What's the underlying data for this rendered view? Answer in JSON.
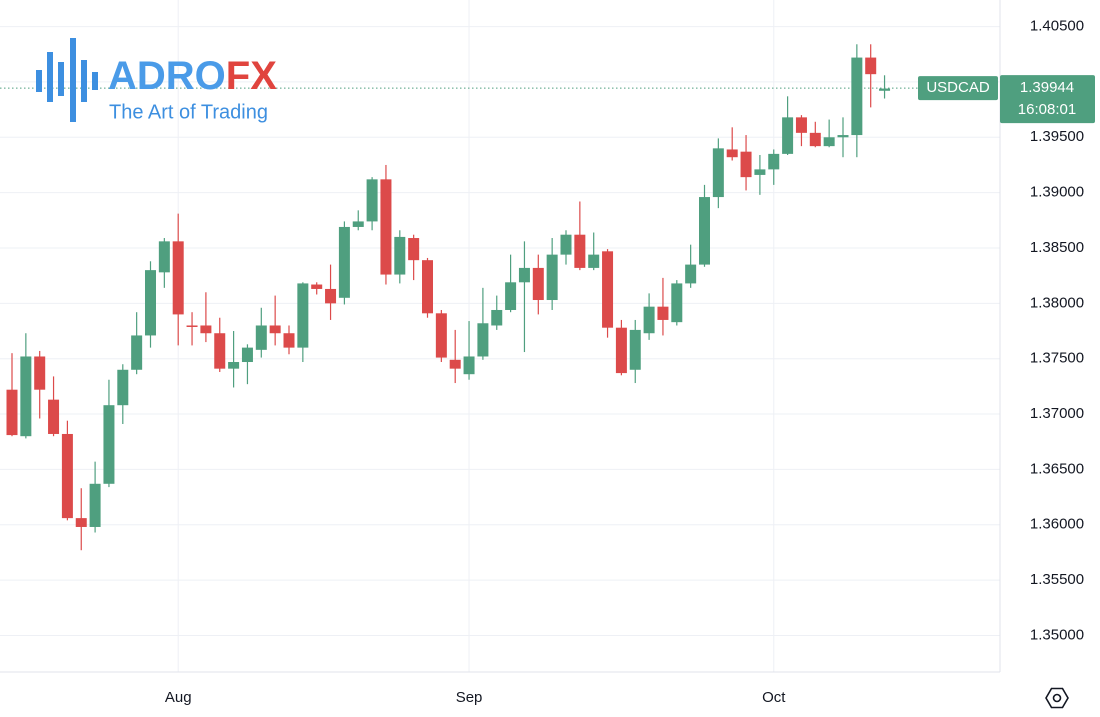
{
  "chart_data": {
    "type": "candlestick",
    "symbol": "USDCAD",
    "last_price": 1.39944,
    "countdown": "16:08:01",
    "logo": {
      "brand_main": "ADRO",
      "brand_accent": "FX",
      "tagline": "The Art of Trading"
    },
    "up_color": "#4f9f7f",
    "down_color": "#dc4a4a",
    "grid": true,
    "categories": [
      null,
      null,
      null,
      null,
      null,
      null,
      null,
      null,
      null,
      null,
      null,
      null,
      "Aug",
      null,
      null,
      null,
      null,
      null,
      null,
      null,
      null,
      null,
      null,
      null,
      null,
      null,
      null,
      null,
      null,
      null,
      null,
      null,
      null,
      "Sep",
      null,
      null,
      null,
      null,
      null,
      null,
      null,
      null,
      null,
      null,
      null,
      null,
      null,
      null,
      null,
      null,
      null,
      null,
      null,
      null,
      null,
      "Oct",
      null,
      null,
      null,
      null,
      null,
      null,
      null,
      null
    ],
    "open": [
      1.3722,
      1.368,
      1.3752,
      1.3713,
      1.3682,
      1.3606,
      1.3598,
      1.3637,
      1.3708,
      1.374,
      1.3771,
      1.3828,
      1.3856,
      1.378,
      1.378,
      1.3773,
      1.3741,
      1.3747,
      1.3758,
      1.378,
      1.3773,
      1.376,
      1.3817,
      1.3813,
      1.3805,
      1.3869,
      1.3874,
      1.3912,
      1.3826,
      1.3859,
      1.3839,
      1.3791,
      1.3749,
      1.3736,
      1.3752,
      1.378,
      1.3794,
      1.3819,
      1.3832,
      1.3803,
      1.3844,
      1.3862,
      1.3832,
      1.3847,
      1.3778,
      1.374,
      1.3773,
      1.3797,
      1.3783,
      1.3818,
      1.3835,
      1.3896,
      1.3939,
      1.3937,
      1.3916,
      1.3921,
      1.3935,
      1.3968,
      1.3954,
      1.3942,
      1.395,
      1.3952,
      1.4022,
      1.3992
    ],
    "high": [
      1.3755,
      1.3773,
      1.3757,
      1.3734,
      1.3694,
      1.3633,
      1.3657,
      1.3731,
      1.3745,
      1.3792,
      1.3838,
      1.3859,
      1.3881,
      1.3792,
      1.381,
      1.3787,
      1.3775,
      1.3763,
      1.3796,
      1.3807,
      1.378,
      1.3819,
      1.3819,
      1.3835,
      1.3874,
      1.3884,
      1.3914,
      1.3925,
      1.3866,
      1.3862,
      1.3841,
      1.3794,
      1.3776,
      1.3784,
      1.3814,
      1.3807,
      1.3844,
      1.3856,
      1.3844,
      1.3859,
      1.3866,
      1.3892,
      1.3864,
      1.3849,
      1.3785,
      1.3785,
      1.3809,
      1.3823,
      1.3821,
      1.3853,
      1.3907,
      1.3949,
      1.3959,
      1.3952,
      1.3934,
      1.3939,
      1.3987,
      1.397,
      1.3964,
      1.3966,
      1.3968,
      1.4034,
      1.4034,
      1.4006
    ],
    "low": [
      1.368,
      1.3678,
      1.3696,
      1.368,
      1.3604,
      1.3577,
      1.3593,
      1.3634,
      1.3691,
      1.3736,
      1.376,
      1.3814,
      1.3762,
      1.3762,
      1.3765,
      1.3738,
      1.3724,
      1.3727,
      1.3751,
      1.3762,
      1.3754,
      1.3747,
      1.3808,
      1.3785,
      1.3799,
      1.3866,
      1.3866,
      1.3817,
      1.3818,
      1.3821,
      1.3787,
      1.3747,
      1.3728,
      1.3731,
      1.3749,
      1.3776,
      1.3792,
      1.3756,
      1.379,
      1.3794,
      1.3835,
      1.383,
      1.383,
      1.3769,
      1.3735,
      1.3728,
      1.3767,
      1.3771,
      1.378,
      1.3814,
      1.3833,
      1.3886,
      1.3929,
      1.3902,
      1.3898,
      1.3907,
      1.3934,
      1.3942,
      1.3941,
      1.3941,
      1.3932,
      1.3932,
      1.3977,
      1.3985
    ],
    "close": [
      1.3681,
      1.3752,
      1.3722,
      1.3682,
      1.3606,
      1.3598,
      1.3637,
      1.3708,
      1.374,
      1.3771,
      1.383,
      1.3856,
      1.379,
      1.3779,
      1.3773,
      1.3741,
      1.3747,
      1.376,
      1.378,
      1.3773,
      1.376,
      1.3818,
      1.3813,
      1.38,
      1.3869,
      1.3874,
      1.3912,
      1.3826,
      1.386,
      1.3839,
      1.3791,
      1.3751,
      1.3741,
      1.3752,
      1.3782,
      1.3794,
      1.3819,
      1.3832,
      1.3803,
      1.3844,
      1.3862,
      1.3832,
      1.3844,
      1.3778,
      1.3737,
      1.3776,
      1.3797,
      1.3785,
      1.3818,
      1.3835,
      1.3896,
      1.394,
      1.3932,
      1.3914,
      1.3921,
      1.3935,
      1.3968,
      1.3954,
      1.3942,
      1.395,
      1.3952,
      1.4022,
      1.4007,
      1.3994
    ],
    "ylim": [
      1.3467,
      1.4074
    ],
    "yticks": [
      {
        "value": 1.35,
        "label": "1.35000"
      },
      {
        "value": 1.355,
        "label": "1.35500"
      },
      {
        "value": 1.36,
        "label": "1.36000"
      },
      {
        "value": 1.365,
        "label": "1.36500"
      },
      {
        "value": 1.37,
        "label": "1.37000"
      },
      {
        "value": 1.375,
        "label": "1.37500"
      },
      {
        "value": 1.38,
        "label": "1.38000"
      },
      {
        "value": 1.385,
        "label": "1.38500"
      },
      {
        "value": 1.39,
        "label": "1.39000"
      },
      {
        "value": 1.395,
        "label": "1.39500"
      },
      {
        "value": 1.4,
        "label": "1.40000"
      },
      {
        "value": 1.405,
        "label": "1.40500"
      }
    ]
  }
}
